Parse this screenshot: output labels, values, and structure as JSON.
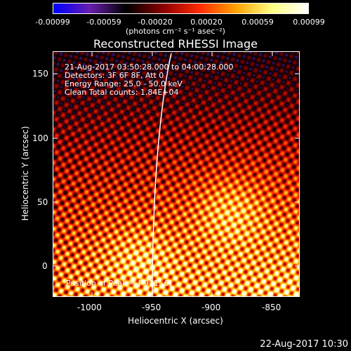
{
  "colorbar": {
    "colors": [
      "#0000ff",
      "#6a1fb0",
      "#000000",
      "#8b0000",
      "#ff2a00",
      "#ffa000",
      "#ffff80",
      "#ffffff"
    ],
    "ticks": [
      "-0.00099",
      "-0.00059",
      "-0.00020",
      "0.00020",
      "0.00059",
      "0.00099"
    ],
    "units": "(photons cm⁻² s⁻¹ asec⁻²)"
  },
  "title": "Reconstructed RHESSI Image",
  "annotations": {
    "time_range": "21-Aug-2017 03:50:28.000 to 04:00:28.000",
    "detectors": "Detectors: 3F 6F 8F, Att 0",
    "energy": "Energy Range: 25.0 - 50.0 keV",
    "clean": "Clean     Total counts: 1.84E+04",
    "peak": "Position of Peak = [-911,-6]"
  },
  "axes": {
    "xlabel": "Heliocentric X (arcsec)",
    "ylabel": "Heliocentric Y (arcsec)",
    "xticks": [
      "-1000",
      "-950",
      "-900",
      "-850"
    ],
    "yticks": [
      "0",
      "50",
      "100",
      "150"
    ],
    "xlim": [
      -1025,
      -833
    ],
    "ylim": [
      -25,
      165
    ]
  },
  "timestamp": "22-Aug-2017 10:30"
}
